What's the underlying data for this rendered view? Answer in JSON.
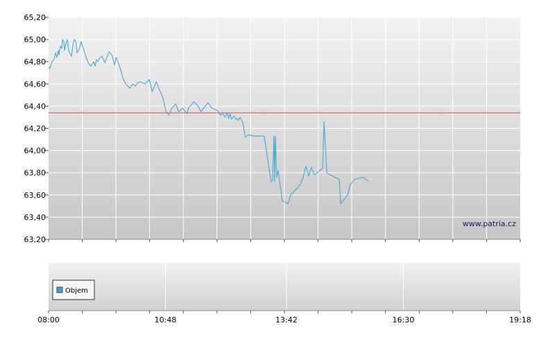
{
  "watermark": "www.patria.cz",
  "colors": {
    "price_line": "#4aa6d4",
    "reference_line": "#e05a5a",
    "legend_swatch": "#4a9fd0"
  },
  "chart_data": [
    {
      "type": "line",
      "title": "",
      "xlabel": "",
      "ylabel": "",
      "ylim": [
        63.2,
        65.2
      ],
      "y_ticks": [
        "65,20",
        "65,00",
        "64,80",
        "64,60",
        "64,40",
        "64,20",
        "64,00",
        "63,80",
        "63,60",
        "63,40",
        "63,20"
      ],
      "reference_value": 64.34,
      "grid": true,
      "series": [
        {
          "x_minutes": [
            0,
            2,
            5,
            8,
            10,
            12,
            14,
            15,
            17,
            19,
            20,
            22,
            23,
            25,
            27,
            29,
            33,
            35,
            37,
            39,
            41,
            43,
            45,
            47,
            55,
            57,
            61,
            65,
            67,
            69,
            71,
            73,
            77,
            81,
            87,
            91,
            95,
            97,
            101,
            105,
            107,
            111,
            117,
            121,
            125,
            127,
            131,
            135,
            139,
            145,
            149,
            155,
            159,
            163,
            165,
            167,
            169,
            173,
            177,
            183,
            187,
            193,
            199,
            201,
            205,
            209,
            215,
            219,
            229,
            235,
            243,
            247,
            251,
            254,
            257,
            259,
            261,
            263,
            265,
            267,
            269,
            271,
            273,
            275,
            277,
            279,
            283,
            287,
            296,
            310,
            320,
            322,
            324,
            325,
            326,
            328,
            330,
            332,
            336,
            344,
            348,
            356,
            362,
            366,
            370,
            374,
            378,
            382,
            394,
            396,
            400,
            408,
            418,
            420,
            430,
            434,
            440,
            452,
            460
          ],
          "values": [
            64.75,
            64.74,
            64.8,
            64.82,
            64.88,
            64.84,
            64.9,
            64.86,
            64.94,
            64.92,
            65.0,
            64.98,
            64.9,
            64.96,
            65.0,
            64.9,
            64.85,
            64.95,
            65.0,
            64.99,
            64.88,
            64.9,
            64.93,
            64.98,
            64.82,
            64.79,
            64.76,
            64.8,
            64.76,
            64.82,
            64.8,
            64.83,
            64.85,
            64.79,
            64.89,
            64.86,
            64.77,
            64.84,
            64.78,
            64.7,
            64.65,
            64.6,
            64.56,
            64.6,
            64.58,
            64.6,
            64.62,
            64.61,
            64.6,
            64.64,
            64.53,
            64.62,
            64.55,
            64.5,
            64.46,
            64.4,
            64.35,
            64.32,
            64.38,
            64.42,
            64.35,
            64.38,
            64.33,
            64.38,
            64.41,
            64.44,
            64.4,
            64.35,
            64.43,
            64.38,
            64.36,
            64.32,
            64.33,
            64.3,
            64.34,
            64.29,
            64.33,
            64.28,
            64.3,
            64.31,
            64.28,
            64.29,
            64.27,
            64.3,
            64.28,
            64.26,
            64.12,
            64.14,
            64.13,
            64.13,
            63.72,
            63.73,
            64.13,
            63.72,
            64.13,
            63.76,
            63.82,
            63.73,
            63.55,
            63.52,
            63.6,
            63.65,
            63.7,
            63.76,
            63.86,
            63.77,
            63.85,
            63.78,
            63.84,
            64.26,
            63.8,
            63.77,
            63.74,
            63.52,
            63.6,
            63.7,
            63.74,
            63.76,
            63.72
          ]
        }
      ]
    },
    {
      "type": "bar",
      "title": "",
      "xlabel": "",
      "ylabel": "",
      "x_ticks": [
        "08:00",
        "10:48",
        "13:42",
        "16:30",
        "19:18"
      ],
      "series": [
        {
          "name": "Objem",
          "values": []
        }
      ]
    }
  ]
}
